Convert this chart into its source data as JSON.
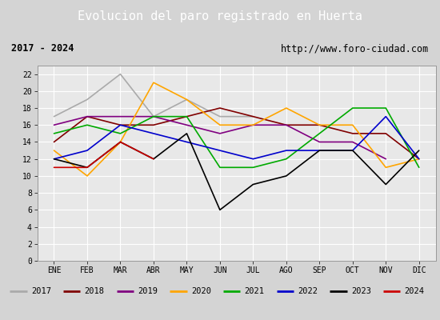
{
  "title": "Evolucion del paro registrado en Huerta",
  "subtitle_left": "2017 - 2024",
  "subtitle_right": "http://www.foro-ciudad.com",
  "xlabel_months": [
    "ENE",
    "FEB",
    "MAR",
    "ABR",
    "MAY",
    "JUN",
    "JUL",
    "AGO",
    "SEP",
    "OCT",
    "NOV",
    "DIC"
  ],
  "ylim": [
    0,
    23
  ],
  "yticks": [
    0,
    2,
    4,
    6,
    8,
    10,
    12,
    14,
    16,
    18,
    20,
    22
  ],
  "series": {
    "2017": {
      "color": "#aaaaaa",
      "values": [
        17,
        19,
        22,
        17,
        19,
        17,
        17,
        null,
        null,
        null,
        null,
        null
      ]
    },
    "2018": {
      "color": "#800000",
      "values": [
        14,
        17,
        16,
        16,
        17,
        18,
        17,
        16,
        16,
        15,
        15,
        12
      ]
    },
    "2019": {
      "color": "#800080",
      "values": [
        16,
        17,
        17,
        17,
        16,
        15,
        16,
        16,
        14,
        14,
        12,
        null
      ]
    },
    "2020": {
      "color": "#ffa500",
      "values": [
        13,
        10,
        14,
        21,
        19,
        16,
        16,
        18,
        16,
        16,
        11,
        12
      ]
    },
    "2021": {
      "color": "#00aa00",
      "values": [
        15,
        16,
        15,
        17,
        17,
        11,
        11,
        12,
        15,
        18,
        18,
        11
      ]
    },
    "2022": {
      "color": "#0000cc",
      "values": [
        12,
        13,
        16,
        15,
        14,
        13,
        12,
        13,
        13,
        13,
        17,
        12
      ]
    },
    "2023": {
      "color": "#000000",
      "values": [
        12,
        11,
        14,
        12,
        15,
        6,
        9,
        10,
        13,
        13,
        9,
        13
      ]
    },
    "2024": {
      "color": "#cc0000",
      "values": [
        11,
        11,
        14,
        12,
        null,
        null,
        null,
        null,
        null,
        null,
        null,
        null
      ]
    }
  },
  "background_color": "#d4d4d4",
  "plot_bg_color": "#e8e8e8",
  "title_bg_color": "#5b8fc9",
  "title_color": "white",
  "info_bg_color": "#ffffff",
  "legend_bg_color": "#ffffff",
  "grid_color": "#ffffff",
  "title_fontsize": 11,
  "tick_fontsize": 7,
  "legend_fontsize": 7.5
}
